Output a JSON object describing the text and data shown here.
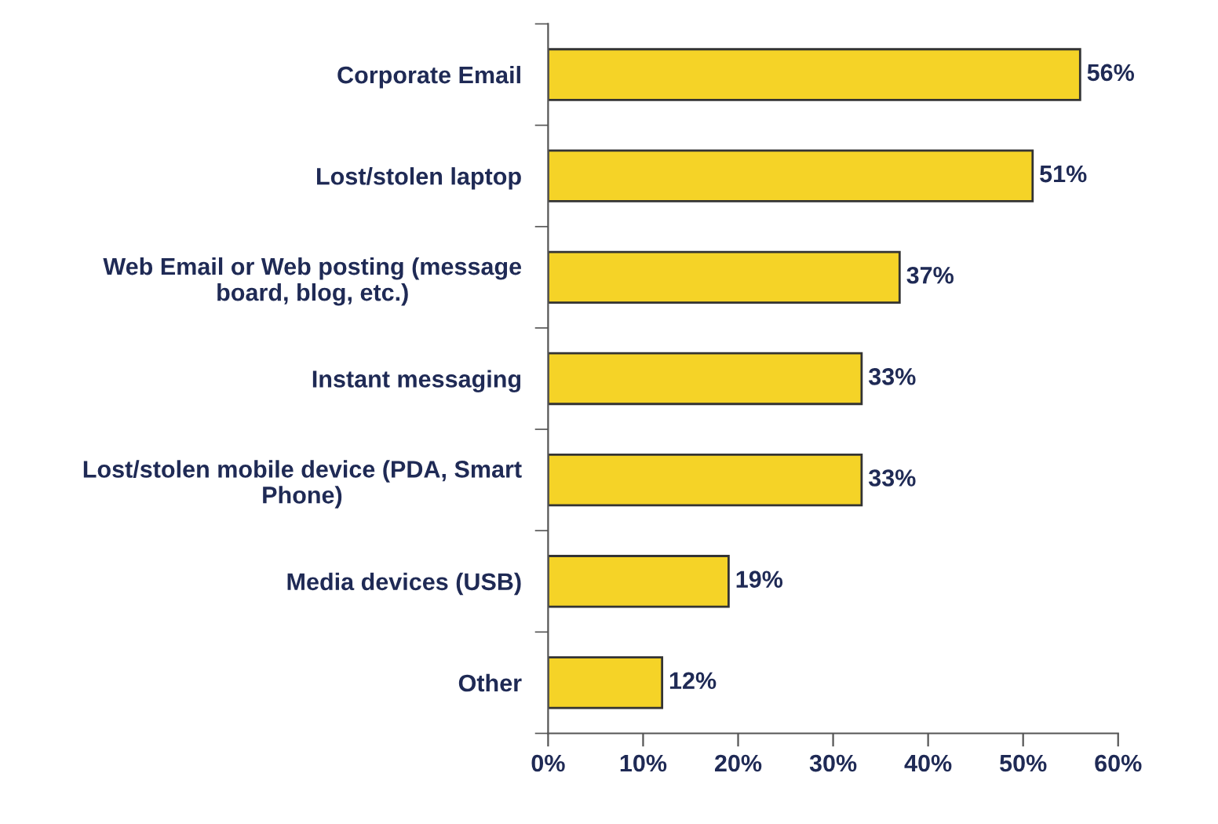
{
  "chart_data": {
    "type": "bar",
    "orientation": "horizontal",
    "categories": [
      "Corporate Email",
      "Lost/stolen laptop",
      "Web Email or Web posting (message\nboard, blog, etc.)",
      "Instant messaging",
      "Lost/stolen mobile device (PDA, Smart\nPhone)",
      "Media devices (USB)",
      "Other"
    ],
    "values": [
      56,
      51,
      37,
      33,
      33,
      19,
      12
    ],
    "value_labels": [
      "56%",
      "51%",
      "37%",
      "33%",
      "33%",
      "19%",
      "12%"
    ],
    "color": "#f5d327",
    "xlim": [
      0,
      60
    ],
    "xticks": [
      {
        "value": 0,
        "label": "0%"
      },
      {
        "value": 10,
        "label": "10%"
      },
      {
        "value": 20,
        "label": "20%"
      },
      {
        "value": 30,
        "label": "30%"
      },
      {
        "value": 40,
        "label": "40%"
      },
      {
        "value": 50,
        "label": "50%"
      },
      {
        "value": 60,
        "label": "60%"
      }
    ],
    "grid": false
  }
}
